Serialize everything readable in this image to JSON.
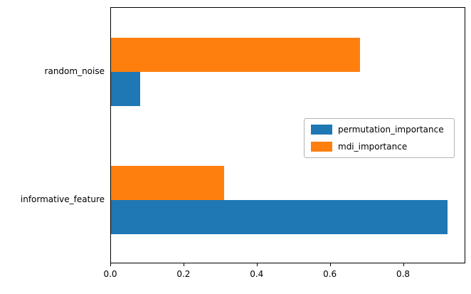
{
  "chart_data": {
    "type": "bar",
    "orientation": "horizontal",
    "title": "",
    "xlabel": "",
    "ylabel": "",
    "categories": [
      "informative_feature",
      "random_noise"
    ],
    "series": [
      {
        "name": "permutation_importance",
        "color": "#1f77b4",
        "values": [
          0.92,
          0.08
        ]
      },
      {
        "name": "mdi_importance",
        "color": "#ff7f0e",
        "values": [
          0.31,
          0.68
        ]
      }
    ],
    "xlim": [
      0,
      0.97
    ],
    "xticks": [
      0,
      0.2,
      0.4,
      0.6,
      0.8
    ],
    "xtick_labels": [
      "0.0",
      "0.2",
      "0.4",
      "0.6",
      "0.8"
    ],
    "grid": false,
    "legend_position": "center right",
    "bar_height_frac": 0.133
  }
}
